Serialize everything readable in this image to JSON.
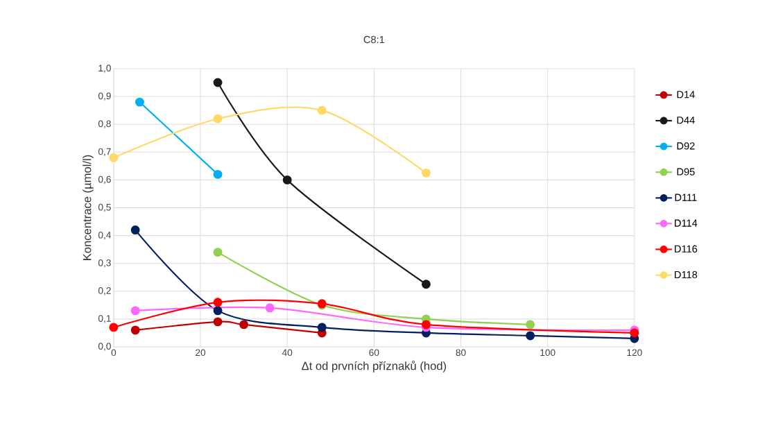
{
  "chart_data": {
    "type": "line",
    "title": "C8:1",
    "xlabel": "Δt od prvních příznaků (hod)",
    "ylabel": "Koncentrace (µmol/l)",
    "xlim": [
      0,
      120
    ],
    "ylim": [
      0,
      1
    ],
    "xticks": [
      0,
      20,
      40,
      60,
      80,
      100,
      120
    ],
    "yticks": [
      {
        "value": 0,
        "label": "0,0"
      },
      {
        "value": 0.1,
        "label": "0,1"
      },
      {
        "value": 0.2,
        "label": "0,2"
      },
      {
        "value": 0.3,
        "label": "0,3"
      },
      {
        "value": 0.4,
        "label": "0,4"
      },
      {
        "value": 0.5,
        "label": "0,5"
      },
      {
        "value": 0.6,
        "label": "0,6"
      },
      {
        "value": 0.7,
        "label": "0,7"
      },
      {
        "value": 0.8,
        "label": "0,8"
      },
      {
        "value": 0.9,
        "label": "0,9"
      },
      {
        "value": 1,
        "label": "1,0"
      }
    ],
    "grid": true,
    "legend": "right",
    "marker": "circle",
    "line_style": "solid",
    "series": [
      {
        "name": "D14",
        "color": "#c00000",
        "x": [
          5,
          24,
          30,
          48
        ],
        "values": [
          0.06,
          0.09,
          0.08,
          0.05
        ]
      },
      {
        "name": "D44",
        "color": "#1a1a1a",
        "x": [
          24,
          40,
          72
        ],
        "values": [
          0.95,
          0.6,
          0.225
        ]
      },
      {
        "name": "D92",
        "color": "#00b0f0",
        "x": [
          6,
          24
        ],
        "values": [
          0.88,
          0.62
        ]
      },
      {
        "name": "D95",
        "color": "#92d050",
        "x": [
          24,
          48,
          72,
          96
        ],
        "values": [
          0.34,
          0.15,
          0.1,
          0.08
        ]
      },
      {
        "name": "D111",
        "color": "#002060",
        "x": [
          5,
          24,
          48,
          72,
          96,
          120
        ],
        "values": [
          0.42,
          0.13,
          0.07,
          0.05,
          0.04,
          0.03
        ]
      },
      {
        "name": "D114",
        "color": "#ff66ff",
        "x": [
          5,
          36,
          72,
          120
        ],
        "values": [
          0.13,
          0.14,
          0.07,
          0.06
        ]
      },
      {
        "name": "D116",
        "color": "#ff0000",
        "x": [
          0,
          24,
          48,
          72,
          120
        ],
        "values": [
          0.07,
          0.16,
          0.155,
          0.08,
          0.05
        ]
      },
      {
        "name": "D118",
        "color": "#ffd966",
        "x": [
          0,
          24,
          48,
          72
        ],
        "values": [
          0.68,
          0.82,
          0.85,
          0.625
        ]
      }
    ]
  }
}
